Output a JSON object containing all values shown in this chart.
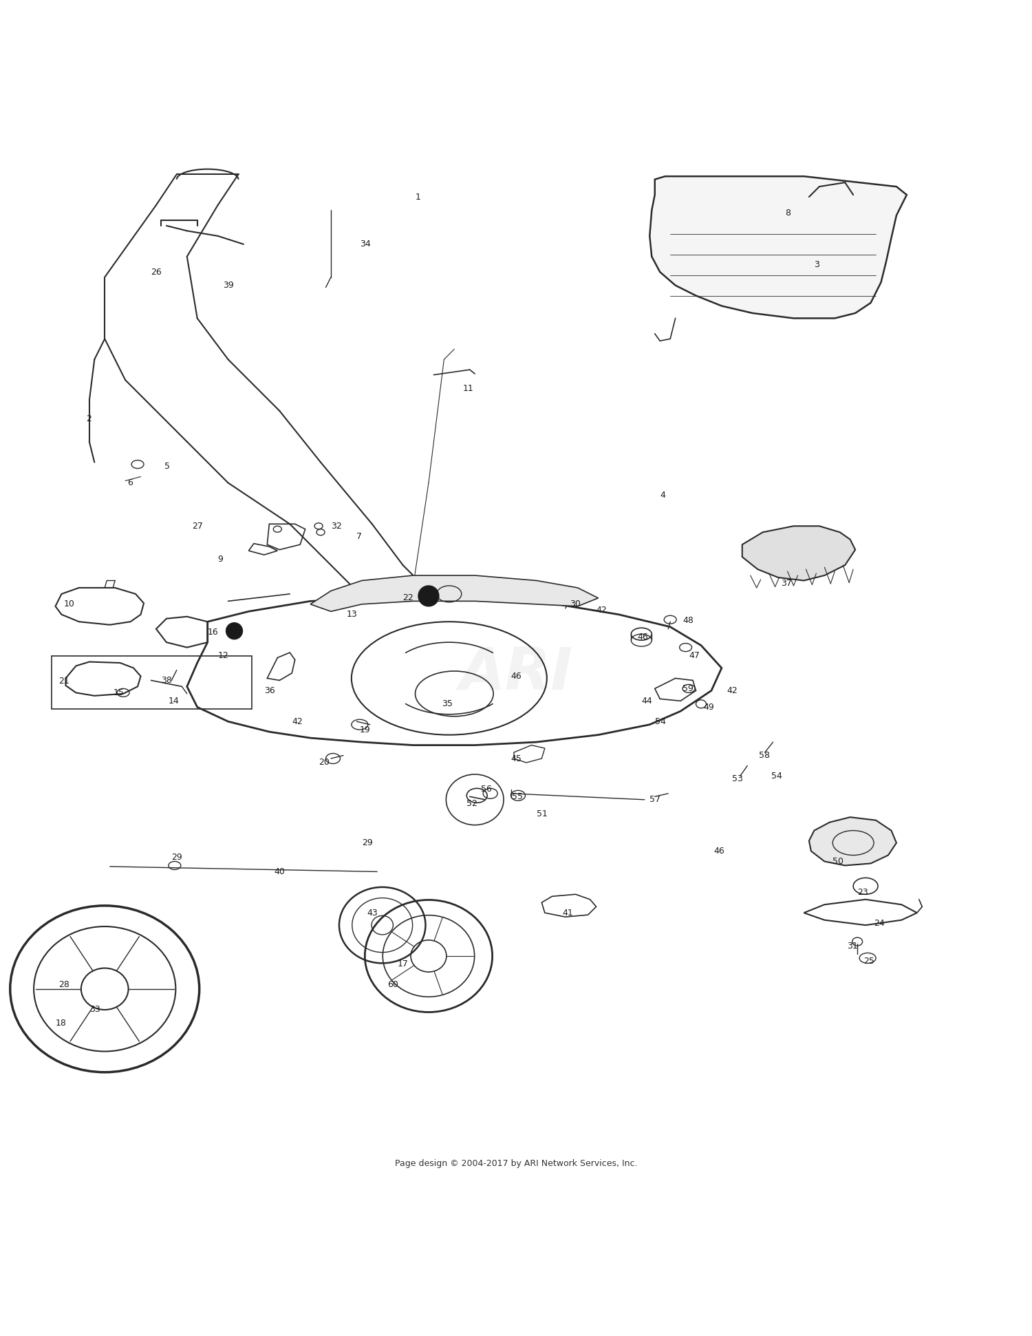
{
  "bg_color": "#ffffff",
  "line_color": "#2a2a2a",
  "text_color": "#1a1a1a",
  "watermark": "ARI",
  "footer": "Page design © 2004-2017 by ARI Network Services, Inc.",
  "fig_width": 15.0,
  "fig_height": 19.41
}
